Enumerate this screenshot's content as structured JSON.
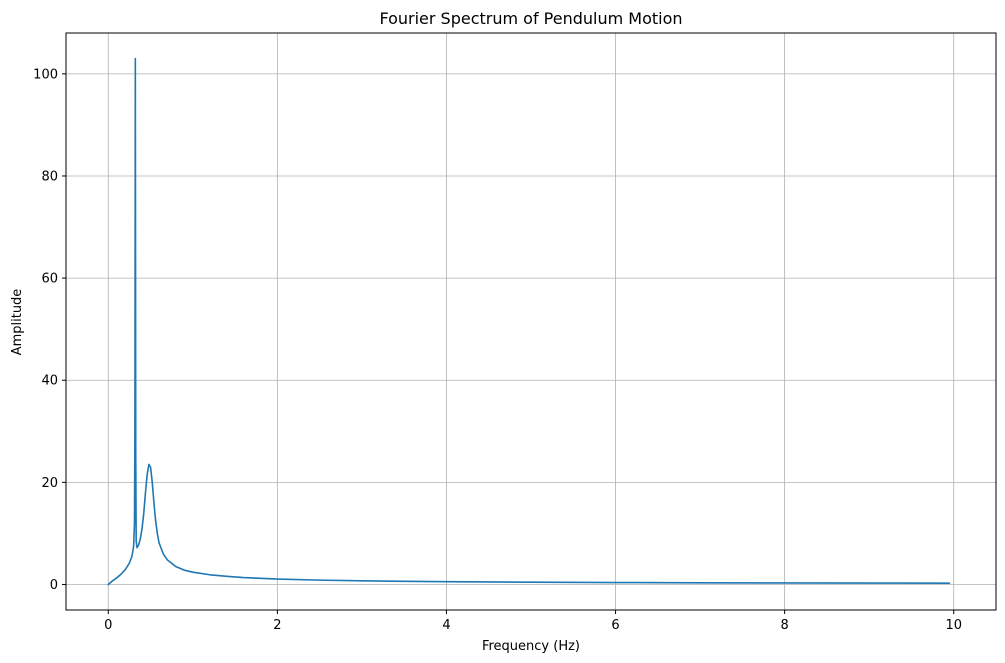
{
  "chart_data": {
    "type": "line",
    "title": "Fourier Spectrum of Pendulum Motion",
    "xlabel": "Frequency (Hz)",
    "ylabel": "Amplitude",
    "xlim": [
      -0.5,
      10.5
    ],
    "ylim": [
      -5,
      108
    ],
    "xticks": [
      0,
      2,
      4,
      6,
      8,
      10
    ],
    "xtick_labels": [
      "0",
      "2",
      "4",
      "6",
      "8",
      "10"
    ],
    "yticks": [
      0,
      20,
      40,
      60,
      80,
      100
    ],
    "ytick_labels": [
      "0",
      "20",
      "40",
      "60",
      "80",
      "100"
    ],
    "grid": true,
    "series": [
      {
        "color": "#1f77b4",
        "x": [
          0,
          0.05,
          0.1,
          0.15,
          0.2,
          0.25,
          0.28,
          0.3,
          0.31,
          0.315,
          0.318,
          0.32,
          0.322,
          0.325,
          0.33,
          0.34,
          0.36,
          0.38,
          0.4,
          0.42,
          0.44,
          0.46,
          0.48,
          0.5,
          0.52,
          0.54,
          0.56,
          0.58,
          0.6,
          0.65,
          0.7,
          0.8,
          0.9,
          1.0,
          1.2,
          1.4,
          1.6,
          1.8,
          2.0,
          2.5,
          3.0,
          3.5,
          4.0,
          5.0,
          6.0,
          7.0,
          8.0,
          9.0,
          9.95
        ],
        "y": [
          0,
          0.7,
          1.3,
          2.0,
          2.9,
          4.2,
          5.5,
          7.5,
          12,
          30,
          70,
          103,
          70,
          25,
          8.5,
          7.2,
          7.8,
          9.0,
          11.0,
          14.0,
          18.0,
          21.5,
          23.5,
          23.0,
          20.0,
          16.0,
          12.5,
          10.0,
          8.2,
          6.0,
          4.8,
          3.5,
          2.8,
          2.4,
          1.9,
          1.6,
          1.35,
          1.2,
          1.05,
          0.85,
          0.72,
          0.62,
          0.55,
          0.45,
          0.38,
          0.33,
          0.3,
          0.28,
          0.26
        ]
      }
    ]
  }
}
